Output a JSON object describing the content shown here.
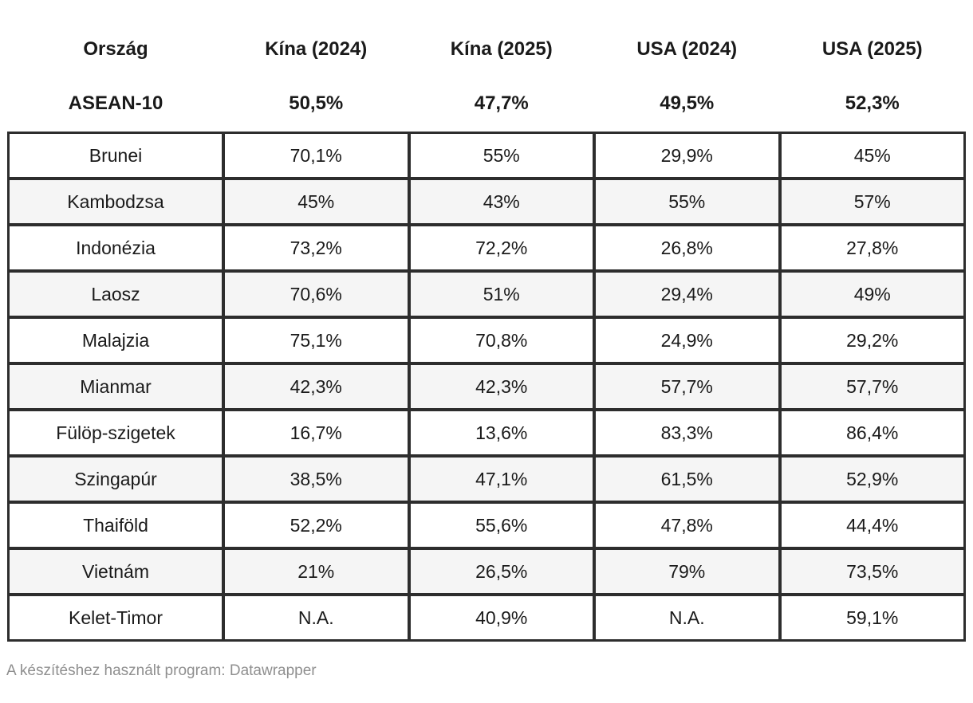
{
  "colors": {
    "page_bg": "#ffffff",
    "text": "#1a1a1a",
    "border": "#2d2d2d",
    "row_bg": "#ffffff",
    "row_alt_bg": "#f5f5f5",
    "footer_text": "#8f8f8f"
  },
  "footer": {
    "text": "A készítéshez használt program: Datawrapper"
  },
  "chart_data": {
    "type": "table",
    "columns": [
      "Ország",
      "Kína (2024)",
      "Kína (2025)",
      "USA (2024)",
      "USA (2025)"
    ],
    "summary_row": {
      "label": "ASEAN-10",
      "values": [
        "50,5%",
        "47,7%",
        "49,5%",
        "52,3%"
      ]
    },
    "rows": [
      {
        "country": "Brunei",
        "values": [
          "70,1%",
          "55%",
          "29,9%",
          "45%"
        ]
      },
      {
        "country": "Kambodzsa",
        "values": [
          "45%",
          "43%",
          "55%",
          "57%"
        ]
      },
      {
        "country": "Indonézia",
        "values": [
          "73,2%",
          "72,2%",
          "26,8%",
          "27,8%"
        ]
      },
      {
        "country": "Laosz",
        "values": [
          "70,6%",
          "51%",
          "29,4%",
          "49%"
        ]
      },
      {
        "country": "Malajzia",
        "values": [
          "75,1%",
          "70,8%",
          "24,9%",
          "29,2%"
        ]
      },
      {
        "country": "Mianmar",
        "values": [
          "42,3%",
          "42,3%",
          "57,7%",
          "57,7%"
        ]
      },
      {
        "country": "Fülöp-szigetek",
        "values": [
          "16,7%",
          "13,6%",
          "83,3%",
          "86,4%"
        ]
      },
      {
        "country": "Szingapúr",
        "values": [
          "38,5%",
          "47,1%",
          "61,5%",
          "52,9%"
        ]
      },
      {
        "country": "Thaiföld",
        "values": [
          "52,2%",
          "55,6%",
          "47,8%",
          "44,4%"
        ]
      },
      {
        "country": "Vietnám",
        "values": [
          "21%",
          "26,5%",
          "79%",
          "73,5%"
        ]
      },
      {
        "country": "Kelet-Timor",
        "values": [
          "N.A.",
          "40,9%",
          "N.A.",
          "59,1%"
        ]
      }
    ],
    "footnote": "A készítéshez használt program: Datawrapper",
    "layout_hints": {
      "header_rows_bold": true,
      "body_borders": true,
      "alternating_row_shading": true
    }
  }
}
